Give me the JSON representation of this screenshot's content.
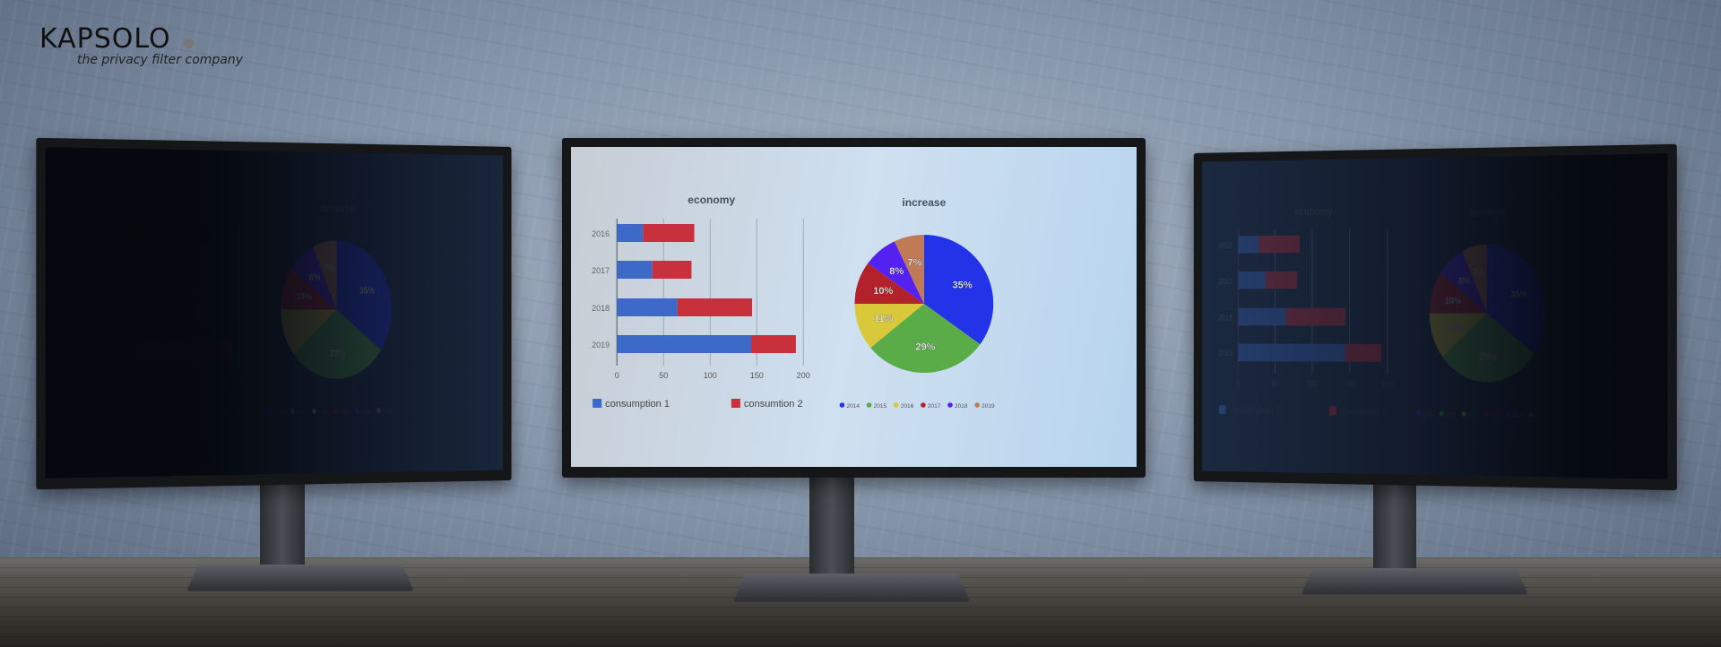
{
  "logo": {
    "name": "KAPSOLO",
    "tagline": "the privacy filter company"
  },
  "bar_chart": {
    "type": "bar",
    "title": "economy",
    "categories": [
      "2016",
      "2017",
      "2018",
      "2019"
    ],
    "series": [
      {
        "name": "consumption  1",
        "values": [
          28,
          38,
          65,
          144
        ],
        "color": "#3d6ac8"
      },
      {
        "name": "consumtion 2",
        "values": [
          55,
          42,
          80,
          48
        ],
        "color": "#c8313c"
      }
    ],
    "xticks": [
      "0",
      "50",
      "100",
      "150",
      "200"
    ],
    "xlim": [
      0,
      200
    ],
    "grid": true,
    "legend": "bottom"
  },
  "pie_chart": {
    "type": "pie",
    "title": "increase",
    "labels": [
      "2014",
      "2015",
      "2016",
      "2017",
      "2018",
      "2019"
    ],
    "values": [
      35,
      29,
      11,
      10,
      8,
      7
    ],
    "value_labels": [
      "35%",
      "29%",
      "11%",
      "10%",
      "8%",
      "7%"
    ],
    "colors": [
      "#2233e8",
      "#5aac48",
      "#d8c83a",
      "#b3212a",
      "#5521f0",
      "#c07a55"
    ],
    "legend": "bottom"
  }
}
